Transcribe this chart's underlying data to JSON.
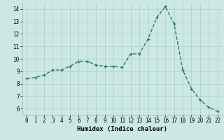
{
  "x": [
    0,
    1,
    2,
    3,
    4,
    5,
    6,
    7,
    8,
    9,
    10,
    11,
    12,
    13,
    14,
    15,
    16,
    17,
    18,
    19,
    20,
    21,
    22
  ],
  "y": [
    8.4,
    8.5,
    8.7,
    9.1,
    9.1,
    9.4,
    9.8,
    9.8,
    9.5,
    9.4,
    9.4,
    9.3,
    10.4,
    10.4,
    11.6,
    13.3,
    14.2,
    12.8,
    9.1,
    7.6,
    6.7,
    6.1,
    5.8
  ],
  "line_color": "#2d7d6e",
  "marker": "+",
  "marker_size": 3,
  "bg_color": "#cce8e4",
  "grid_color": "#afd4cf",
  "xlabel": "Humidex (Indice chaleur)",
  "xlim": [
    -0.5,
    22.5
  ],
  "ylim": [
    5.5,
    14.5
  ],
  "yticks": [
    6,
    7,
    8,
    9,
    10,
    11,
    12,
    13,
    14
  ],
  "xticks": [
    0,
    1,
    2,
    3,
    4,
    5,
    6,
    7,
    8,
    9,
    10,
    11,
    12,
    13,
    14,
    15,
    16,
    17,
    18,
    19,
    20,
    21,
    22
  ],
  "line_width": 1.0,
  "xlabel_fontsize": 6.5,
  "tick_fontsize": 5.5
}
